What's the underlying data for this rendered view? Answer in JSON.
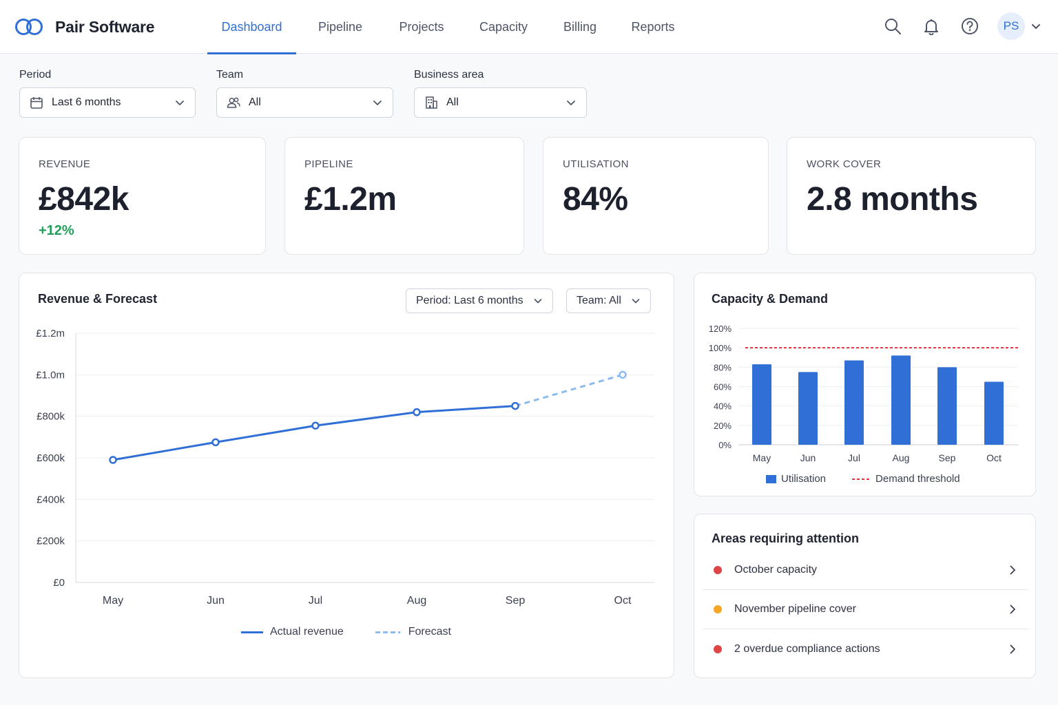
{
  "app": {
    "name": "Pair Software"
  },
  "nav": {
    "items": [
      {
        "label": "Dashboard",
        "active": true
      },
      {
        "label": "Pipeline"
      },
      {
        "label": "Projects"
      },
      {
        "label": "Capacity"
      },
      {
        "label": "Billing"
      },
      {
        "label": "Reports"
      }
    ]
  },
  "header": {
    "icons": [
      "search-icon",
      "bell-icon",
      "help-icon"
    ],
    "avatar_initials": "PS"
  },
  "filters": {
    "period": {
      "label": "Period",
      "value": "Last 6 months",
      "icon": "calendar-icon"
    },
    "team": {
      "label": "Team",
      "value": "All",
      "icon": "users-icon"
    },
    "business_area": {
      "label": "Business area",
      "value": "All",
      "icon": "building-icon"
    }
  },
  "kpis": [
    {
      "label": "REVENUE",
      "value": "£842k",
      "delta": "+12%"
    },
    {
      "label": "PIPELINE",
      "value": "£1.2m"
    },
    {
      "label": "UTILISATION",
      "value": "84%"
    },
    {
      "label": "WORK COVER",
      "value": "2.8 months"
    }
  ],
  "revenue_panel": {
    "title": "Revenue & Forecast",
    "period_chip": "Period: Last 6 months",
    "team_chip": "Team: All",
    "legend": {
      "actual": "Actual revenue",
      "forecast": "Forecast"
    }
  },
  "capacity_panel": {
    "title": "Capacity & Demand",
    "legend": {
      "utilisation": "Utilisation",
      "threshold": "Demand threshold"
    }
  },
  "attention": {
    "title": "Areas requiring attention",
    "items": [
      {
        "label": "October capacity",
        "status_color": "#e04545"
      },
      {
        "label": "November pipeline cover",
        "status_color": "#f5a623"
      },
      {
        "label": "2 overdue compliance actions",
        "status_color": "#e04545"
      }
    ]
  },
  "colors": {
    "accent": "#2f6fd6",
    "forecast": "#8cbcee",
    "threshold": "#e0323c",
    "positive": "#22a05a"
  },
  "chart_data": [
    {
      "type": "line",
      "title": "Revenue & Forecast",
      "categories": [
        "May",
        "Jun",
        "Jul",
        "Aug",
        "Sep",
        "Oct"
      ],
      "y_ticks": [
        "£0",
        "£200k",
        "£400k",
        "£600k",
        "£800k",
        "£1.0m",
        "£1.2m"
      ],
      "ylim": [
        0,
        1200
      ],
      "unit": "£k",
      "series": [
        {
          "name": "Actual revenue",
          "style": "solid",
          "points": [
            [
              "May",
              590
            ],
            [
              "Jun",
              675
            ],
            [
              "Jul",
              755
            ],
            [
              "Aug",
              820
            ],
            [
              "Sep",
              850
            ]
          ]
        },
        {
          "name": "Forecast",
          "style": "dashed",
          "points": [
            [
              "Sep",
              850
            ],
            [
              "Oct",
              1000
            ]
          ]
        }
      ],
      "grid": true,
      "legend_position": "bottom"
    },
    {
      "type": "bar",
      "title": "Capacity & Demand",
      "categories": [
        "May",
        "Jun",
        "Jul",
        "Aug",
        "Sep",
        "Oct"
      ],
      "y_ticks": [
        "0%",
        "20%",
        "40%",
        "60%",
        "80%",
        "100%",
        "120%"
      ],
      "ylim": [
        0,
        120
      ],
      "series": [
        {
          "name": "Utilisation",
          "values": [
            83,
            75,
            87,
            92,
            80,
            65
          ]
        }
      ],
      "threshold": {
        "name": "Demand threshold",
        "value": 100
      },
      "grid": true,
      "legend_position": "bottom"
    }
  ]
}
